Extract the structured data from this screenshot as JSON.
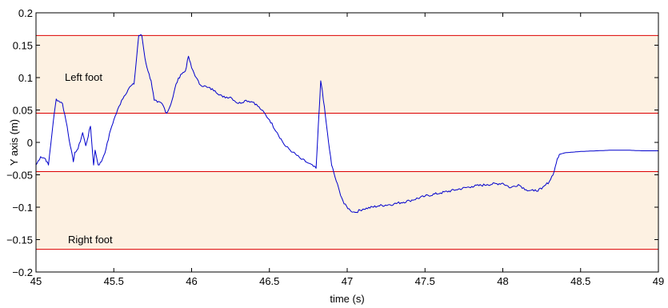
{
  "chart_data": {
    "type": "line",
    "title": "",
    "xlabel": "time (s)",
    "ylabel": "Y axis (m)",
    "xlim": [
      45,
      49
    ],
    "ylim": [
      -0.2,
      0.2
    ],
    "x_ticks": [
      45,
      45.5,
      46,
      46.5,
      47,
      47.5,
      48,
      48.5,
      49
    ],
    "x_tick_labels": [
      "45",
      "45.5",
      "46",
      "46.5",
      "47",
      "47.5",
      "48",
      "48.5",
      "49"
    ],
    "y_ticks": [
      -0.2,
      -0.15,
      -0.1,
      -0.05,
      0,
      0.05,
      0.1,
      0.15,
      0.2
    ],
    "y_tick_labels": [
      "−0.2",
      "−0.15",
      "−0.1",
      "−0.05",
      "0",
      "0.05",
      "0.1",
      "0.15",
      "0.2"
    ],
    "grid": false,
    "colors": {
      "line": "#0000cc",
      "threshold": "#dd0000",
      "band": "#fdf1e2"
    },
    "bands": [
      {
        "label": "Left foot",
        "y_min": 0.045,
        "y_max": 0.165
      },
      {
        "label": "Right foot",
        "y_min": -0.165,
        "y_max": -0.045
      }
    ],
    "threshold_lines": [
      0.165,
      0.045,
      -0.045,
      -0.165
    ],
    "series": [
      {
        "x": [
          45.0,
          45.03,
          45.06,
          45.08,
          45.11,
          45.13,
          45.17,
          45.2,
          45.22,
          45.24,
          45.25,
          45.27,
          45.3,
          45.32,
          45.35,
          45.37,
          45.38,
          45.4,
          45.42,
          45.45,
          45.48,
          45.5,
          45.55,
          45.6,
          45.63,
          45.66,
          45.68,
          45.7,
          45.72,
          45.74,
          45.76,
          45.78,
          45.81,
          45.84,
          45.86,
          45.88,
          45.9,
          45.93,
          45.96,
          45.98,
          46.0,
          46.03,
          46.05,
          46.1,
          46.15,
          46.2,
          46.25,
          46.3,
          46.35,
          46.4,
          46.45,
          46.5,
          46.55,
          46.6,
          46.65,
          46.7,
          46.75,
          46.8,
          46.83,
          46.84,
          46.86,
          46.88,
          46.9,
          46.93,
          46.95,
          46.98,
          47.02,
          47.05,
          47.1,
          47.2,
          47.3,
          47.4,
          47.5,
          47.6,
          47.7,
          47.8,
          47.9,
          48.0,
          48.05,
          48.1,
          48.15,
          48.2,
          48.25,
          48.3,
          48.33,
          48.35,
          48.37,
          48.4,
          48.5,
          48.6,
          48.7,
          48.8,
          48.9,
          49.0
        ],
        "y": [
          -0.035,
          -0.022,
          -0.025,
          -0.035,
          0.03,
          0.067,
          0.06,
          0.025,
          -0.005,
          -0.03,
          -0.015,
          -0.01,
          0.015,
          -0.005,
          0.025,
          -0.035,
          -0.012,
          -0.035,
          -0.03,
          -0.01,
          0.02,
          0.035,
          0.065,
          0.085,
          0.09,
          0.165,
          0.165,
          0.13,
          0.11,
          0.095,
          0.065,
          0.062,
          0.06,
          0.045,
          0.055,
          0.07,
          0.09,
          0.105,
          0.11,
          0.133,
          0.115,
          0.1,
          0.09,
          0.085,
          0.08,
          0.07,
          0.07,
          0.06,
          0.065,
          0.062,
          0.05,
          0.035,
          0.015,
          -0.005,
          -0.015,
          -0.025,
          -0.032,
          -0.04,
          0.095,
          0.08,
          0.04,
          0.0,
          -0.035,
          -0.06,
          -0.075,
          -0.095,
          -0.105,
          -0.108,
          -0.103,
          -0.098,
          -0.095,
          -0.09,
          -0.083,
          -0.078,
          -0.073,
          -0.068,
          -0.065,
          -0.063,
          -0.07,
          -0.065,
          -0.073,
          -0.075,
          -0.072,
          -0.06,
          -0.045,
          -0.025,
          -0.018,
          -0.016,
          -0.014,
          -0.013,
          -0.012,
          -0.012,
          -0.013,
          -0.013
        ]
      }
    ]
  }
}
